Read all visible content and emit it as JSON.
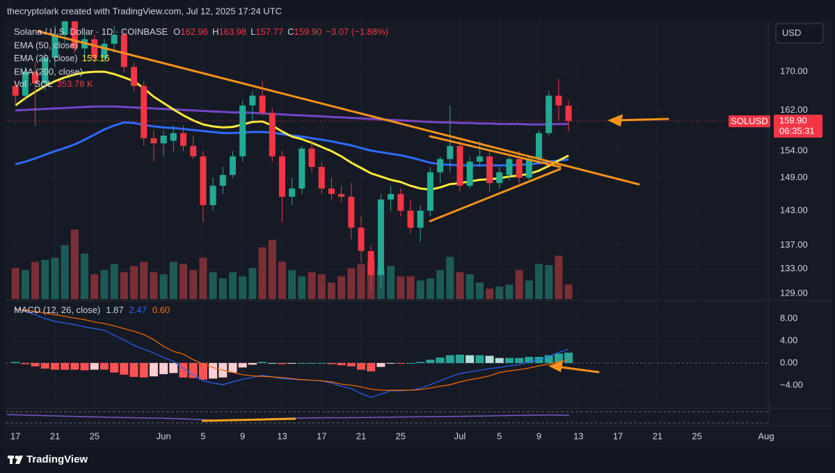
{
  "header": "thecryptolark created with TradingView.com, Jul 12, 2025 17:24 UTC",
  "footer": "TradingView",
  "chart_data": [
    {
      "type": "candlestick",
      "symbol": "Solana / U.S. Dollar · 1D · COINBASE",
      "ohlc_legend": [
        {
          "label": "O",
          "value": "162.96"
        },
        {
          "label": "H",
          "value": "163.98"
        },
        {
          "label": "L",
          "value": "157.77"
        },
        {
          "label": "C",
          "value": "159.90"
        }
      ],
      "change": "−3.07 (−1.88%)",
      "currency": "USD",
      "symbol_tag": "SOLUSD",
      "last_price_label": "159.90",
      "countdown": "06:35:31",
      "log_scale": true,
      "grid": true,
      "up_color": "#22ab94",
      "down_color": "#f23645",
      "volume_up_color": "#1d5b56",
      "volume_down_color": "#7a2f36",
      "volume_name": "Vol · SOL",
      "volume_label": "353.78 K",
      "dates": [
        "2025-05-17",
        "2025-05-18",
        "2025-05-19",
        "2025-05-20",
        "2025-05-21",
        "2025-05-22",
        "2025-05-23",
        "2025-05-24",
        "2025-05-25",
        "2025-05-26",
        "2025-05-27",
        "2025-05-28",
        "2025-05-29",
        "2025-05-30",
        "2025-05-31",
        "2025-06-01",
        "2025-06-02",
        "2025-06-03",
        "2025-06-04",
        "2025-06-05",
        "2025-06-06",
        "2025-06-07",
        "2025-06-08",
        "2025-06-09",
        "2025-06-10",
        "2025-06-11",
        "2025-06-12",
        "2025-06-13",
        "2025-06-14",
        "2025-06-15",
        "2025-06-16",
        "2025-06-17",
        "2025-06-18",
        "2025-06-19",
        "2025-06-20",
        "2025-06-21",
        "2025-06-22",
        "2025-06-23",
        "2025-06-24",
        "2025-06-25",
        "2025-06-26",
        "2025-06-27",
        "2025-06-28",
        "2025-06-29",
        "2025-06-30",
        "2025-07-01",
        "2025-07-02",
        "2025-07-03",
        "2025-07-04",
        "2025-07-05",
        "2025-07-06",
        "2025-07-07",
        "2025-07-08",
        "2025-07-09",
        "2025-07-10",
        "2025-07-11",
        "2025-07-12"
      ],
      "open": [
        167,
        165,
        170,
        167.5,
        173,
        178,
        181,
        175,
        177,
        173,
        176,
        178,
        171,
        167,
        156.5,
        155.5,
        156,
        157.5,
        155,
        153,
        144,
        147.5,
        149.5,
        153,
        163,
        165,
        161.5,
        153,
        145.5,
        147,
        154.5,
        151,
        147,
        146,
        145.5,
        140,
        136,
        132,
        145,
        146,
        143,
        140,
        143,
        150,
        152.5,
        155,
        147.5,
        152,
        153,
        148,
        149.5,
        152.5,
        149,
        152.5,
        157.5,
        165,
        162.96
      ],
      "high": [
        168,
        171,
        172,
        174,
        180,
        183,
        182,
        178,
        178,
        177,
        180,
        179,
        172,
        168,
        158,
        158,
        159,
        159,
        157,
        154,
        149,
        151,
        154,
        164,
        166,
        168,
        162.5,
        154,
        149,
        155,
        156,
        152,
        149,
        147.5,
        148,
        142,
        137,
        146,
        147.5,
        147,
        145,
        144,
        151,
        153,
        163,
        156,
        153,
        156,
        154,
        151,
        153,
        154,
        153,
        158,
        166,
        168.5,
        163.98
      ],
      "low": [
        163,
        164,
        159,
        166,
        171,
        176,
        174,
        173,
        172,
        172,
        174,
        170,
        166,
        155,
        152,
        153,
        154,
        154,
        152.5,
        141,
        143,
        146,
        149,
        152,
        160,
        161,
        152,
        141,
        144,
        146,
        150,
        146,
        145,
        144.5,
        138,
        134,
        129.5,
        130,
        143,
        142,
        139,
        137.5,
        142,
        148,
        150,
        146.5,
        147,
        151,
        146.5,
        147,
        148.5,
        148,
        148.5,
        152,
        157,
        160,
        157.77
      ],
      "close": [
        165,
        170,
        167.5,
        173,
        178,
        181,
        175,
        177,
        173,
        176,
        178,
        171,
        167,
        156.5,
        155.5,
        157,
        157.5,
        155,
        153,
        144,
        147.5,
        149.5,
        153,
        163,
        165,
        161.5,
        153,
        145.5,
        147,
        154.5,
        151,
        147,
        146,
        145.5,
        140,
        136,
        132,
        145,
        146,
        143,
        140,
        143,
        150,
        152.5,
        155,
        147.5,
        152,
        153,
        148,
        150,
        152.5,
        149,
        152.5,
        157.5,
        165,
        163,
        159.9
      ],
      "volume": [
        750,
        700,
        900,
        950,
        1000,
        1300,
        1680,
        1100,
        600,
        700,
        850,
        650,
        800,
        900,
        650,
        600,
        900,
        850,
        700,
        1000,
        650,
        500,
        650,
        550,
        750,
        1250,
        1430,
        900,
        700,
        550,
        650,
        600,
        400,
        550,
        750,
        850,
        950,
        700,
        800,
        550,
        550,
        450,
        500,
        700,
        1020,
        650,
        600,
        400,
        250,
        300,
        350,
        700,
        450,
        850,
        820,
        1050,
        353.78
      ],
      "series": [
        {
          "name": "EMA (50, close)",
          "color": "#2f6bff",
          "values": [
            151.5,
            152.0,
            152.6,
            153.3,
            154.0,
            154.6,
            155.3,
            156.2,
            157.2,
            158.2,
            159.0,
            159.6,
            159.5,
            159.1,
            158.8,
            158.6,
            158.5,
            158.3,
            158.1,
            157.9,
            157.7,
            157.5,
            157.5,
            157.6,
            157.7,
            157.7,
            157.6,
            157.3,
            157.0,
            156.8,
            156.5,
            156.2,
            155.9,
            155.5,
            155.1,
            154.6,
            154.1,
            153.8,
            153.5,
            153.2,
            152.8,
            152.3,
            151.8,
            151.5,
            151.4,
            151.3,
            151.3,
            151.3,
            151.3,
            151.3,
            151.3,
            151.4,
            151.5,
            151.7,
            152.0,
            152.2,
            152.4
          ]
        },
        {
          "name": "EMA (20, close)",
          "color": "#ffeb3b",
          "legend_value": "153.16",
          "values": [
            163.0,
            164.5,
            165.8,
            167.0,
            168.0,
            168.8,
            169.4,
            169.8,
            170.0,
            170.0,
            169.5,
            168.8,
            168.0,
            166.5,
            164.8,
            163.5,
            162.2,
            161.0,
            160.0,
            159.2,
            158.8,
            158.6,
            158.7,
            159.2,
            159.7,
            159.8,
            159.0,
            157.8,
            156.8,
            156.3,
            155.6,
            154.8,
            154.0,
            153.0,
            151.8,
            150.8,
            149.8,
            149.2,
            148.6,
            148.2,
            147.5,
            147.0,
            146.8,
            147.2,
            147.8,
            148.0,
            148.3,
            148.6,
            148.7,
            148.9,
            149.2,
            149.4,
            149.7,
            150.3,
            151.2,
            152.2,
            153.16
          ]
        },
        {
          "name": "EMA (200, close)",
          "color": "#7446c8",
          "values": [
            162.0,
            162.1,
            162.2,
            162.3,
            162.4,
            162.5,
            162.6,
            162.7,
            162.8,
            162.8,
            162.8,
            162.7,
            162.6,
            162.5,
            162.4,
            162.3,
            162.2,
            162.1,
            162.0,
            161.9,
            161.8,
            161.7,
            161.6,
            161.6,
            161.5,
            161.4,
            161.3,
            161.2,
            161.1,
            161.0,
            160.9,
            160.8,
            160.7,
            160.6,
            160.5,
            160.4,
            160.3,
            160.2,
            160.1,
            160.0,
            159.9,
            159.8,
            159.7,
            159.6,
            159.6,
            159.5,
            159.5,
            159.4,
            159.4,
            159.3,
            159.3,
            159.3,
            159.2,
            159.2,
            159.2,
            159.3,
            159.3
          ]
        }
      ],
      "xlim": [
        "2025-05-16",
        "2025-08-01"
      ],
      "xticks": [
        {
          "value": "2025-05-17",
          "label": "17"
        },
        {
          "value": "2025-05-21",
          "label": "21"
        },
        {
          "value": "2025-05-25",
          "label": "25"
        },
        {
          "value": "2025-06-01",
          "label": "Jun"
        },
        {
          "value": "2025-06-05",
          "label": "5"
        },
        {
          "value": "2025-06-09",
          "label": "9"
        },
        {
          "value": "2025-06-13",
          "label": "13"
        },
        {
          "value": "2025-06-17",
          "label": "17"
        },
        {
          "value": "2025-06-21",
          "label": "21"
        },
        {
          "value": "2025-06-25",
          "label": "25"
        },
        {
          "value": "2025-07-01",
          "label": "Jul"
        },
        {
          "value": "2025-07-05",
          "label": "5"
        },
        {
          "value": "2025-07-09",
          "label": "9"
        },
        {
          "value": "2025-07-13",
          "label": "13"
        },
        {
          "value": "2025-07-17",
          "label": "17"
        },
        {
          "value": "2025-07-21",
          "label": "21"
        },
        {
          "value": "2025-07-25",
          "label": "25"
        },
        {
          "value": "2025-08-01",
          "label": "Aug"
        }
      ],
      "ylim": [
        128.1,
        181.1
      ],
      "yticks": [
        {
          "value": 170,
          "label": "170.00"
        },
        {
          "value": 162,
          "label": "162.00"
        },
        {
          "value": 154,
          "label": "154.00"
        },
        {
          "value": 149,
          "label": "149.00"
        },
        {
          "value": 143,
          "label": "143.00"
        },
        {
          "value": 137,
          "label": "137.00"
        },
        {
          "value": 133,
          "label": "133.00"
        },
        {
          "value": 129,
          "label": "129.00"
        }
      ]
    },
    {
      "type": "macd",
      "title": "MACD (12, 26, close)",
      "legend_values": [
        {
          "text": "1.87",
          "color": "#b2dfdb"
        },
        {
          "text": "2.47",
          "color": "#2962ff"
        },
        {
          "text": "0.60",
          "color": "#ff6d00"
        }
      ],
      "hist_colors": {
        "rising_above": "#26a69a",
        "falling_above": "#b2dfdb",
        "rising_below": "#ffcdd2",
        "falling_below": "#ff5252"
      },
      "series": [
        {
          "name": "MACD",
          "color": "#2962ff",
          "values": [
            9.8,
            9.3,
            8.7,
            8.0,
            7.5,
            7.2,
            6.9,
            6.5,
            6.2,
            5.9,
            5.0,
            4.1,
            3.2,
            2.5,
            1.8,
            1.0,
            0.3,
            -1.0,
            -2.1,
            -3.2,
            -3.6,
            -3.9,
            -3.4,
            -2.9,
            -2.6,
            -2.2,
            -2.5,
            -2.8,
            -2.9,
            -3.0,
            -3.1,
            -3.2,
            -3.6,
            -4.2,
            -4.6,
            -5.5,
            -6.2,
            -5.6,
            -5.0,
            -5.0,
            -4.9,
            -4.6,
            -3.9,
            -3.2,
            -2.5,
            -1.9,
            -1.6,
            -1.3,
            -1.0,
            -0.8,
            -0.5,
            -0.3,
            0.2,
            0.6,
            1.2,
            1.9,
            2.47
          ]
        },
        {
          "name": "Signal",
          "color": "#ff6d00",
          "values": [
            9.6,
            9.5,
            9.3,
            9.0,
            8.7,
            8.4,
            8.1,
            7.8,
            7.4,
            7.1,
            6.7,
            6.2,
            5.7,
            5.1,
            4.2,
            3.0,
            2.1,
            1.6,
            0.6,
            -0.2,
            -0.8,
            -1.3,
            -1.7,
            -2.1,
            -2.3,
            -2.4,
            -2.5,
            -2.6,
            -2.8,
            -3.0,
            -3.1,
            -3.2,
            -3.4,
            -3.8,
            -4.0,
            -4.3,
            -4.7,
            -4.9,
            -4.9,
            -4.9,
            -4.9,
            -4.8,
            -4.5,
            -4.2,
            -3.9,
            -3.4,
            -3.0,
            -2.7,
            -2.3,
            -1.7,
            -1.4,
            -1.2,
            -0.9,
            -0.5,
            -0.2,
            0.2,
            0.6
          ]
        }
      ],
      "histogram": [
        0.2,
        -0.2,
        -0.6,
        -1.0,
        -1.2,
        -1.2,
        -1.2,
        -1.3,
        -1.2,
        -1.2,
        -1.7,
        -2.1,
        -2.5,
        -2.6,
        -2.4,
        -2.0,
        -1.8,
        -2.6,
        -2.7,
        -3.0,
        -2.8,
        -2.6,
        -1.7,
        -0.8,
        -0.3,
        0.2,
        0,
        -0.2,
        -0.1,
        0,
        0,
        0,
        -0.2,
        -0.4,
        -0.6,
        -1.2,
        -1.5,
        -0.7,
        -0.1,
        -0.1,
        0,
        0.2,
        0.6,
        1.0,
        1.4,
        1.5,
        1.4,
        1.4,
        1.3,
        0.9,
        0.9,
        0.9,
        1.1,
        1.1,
        1.4,
        1.7,
        1.87
      ],
      "ylim": [
        -7.9,
        10.25
      ],
      "yticks": [
        {
          "value": 8,
          "label": "8.00"
        },
        {
          "value": 4,
          "label": "4.00"
        },
        {
          "value": 0,
          "label": "0.00"
        },
        {
          "value": -4,
          "label": "−4.00"
        }
      ]
    }
  ]
}
